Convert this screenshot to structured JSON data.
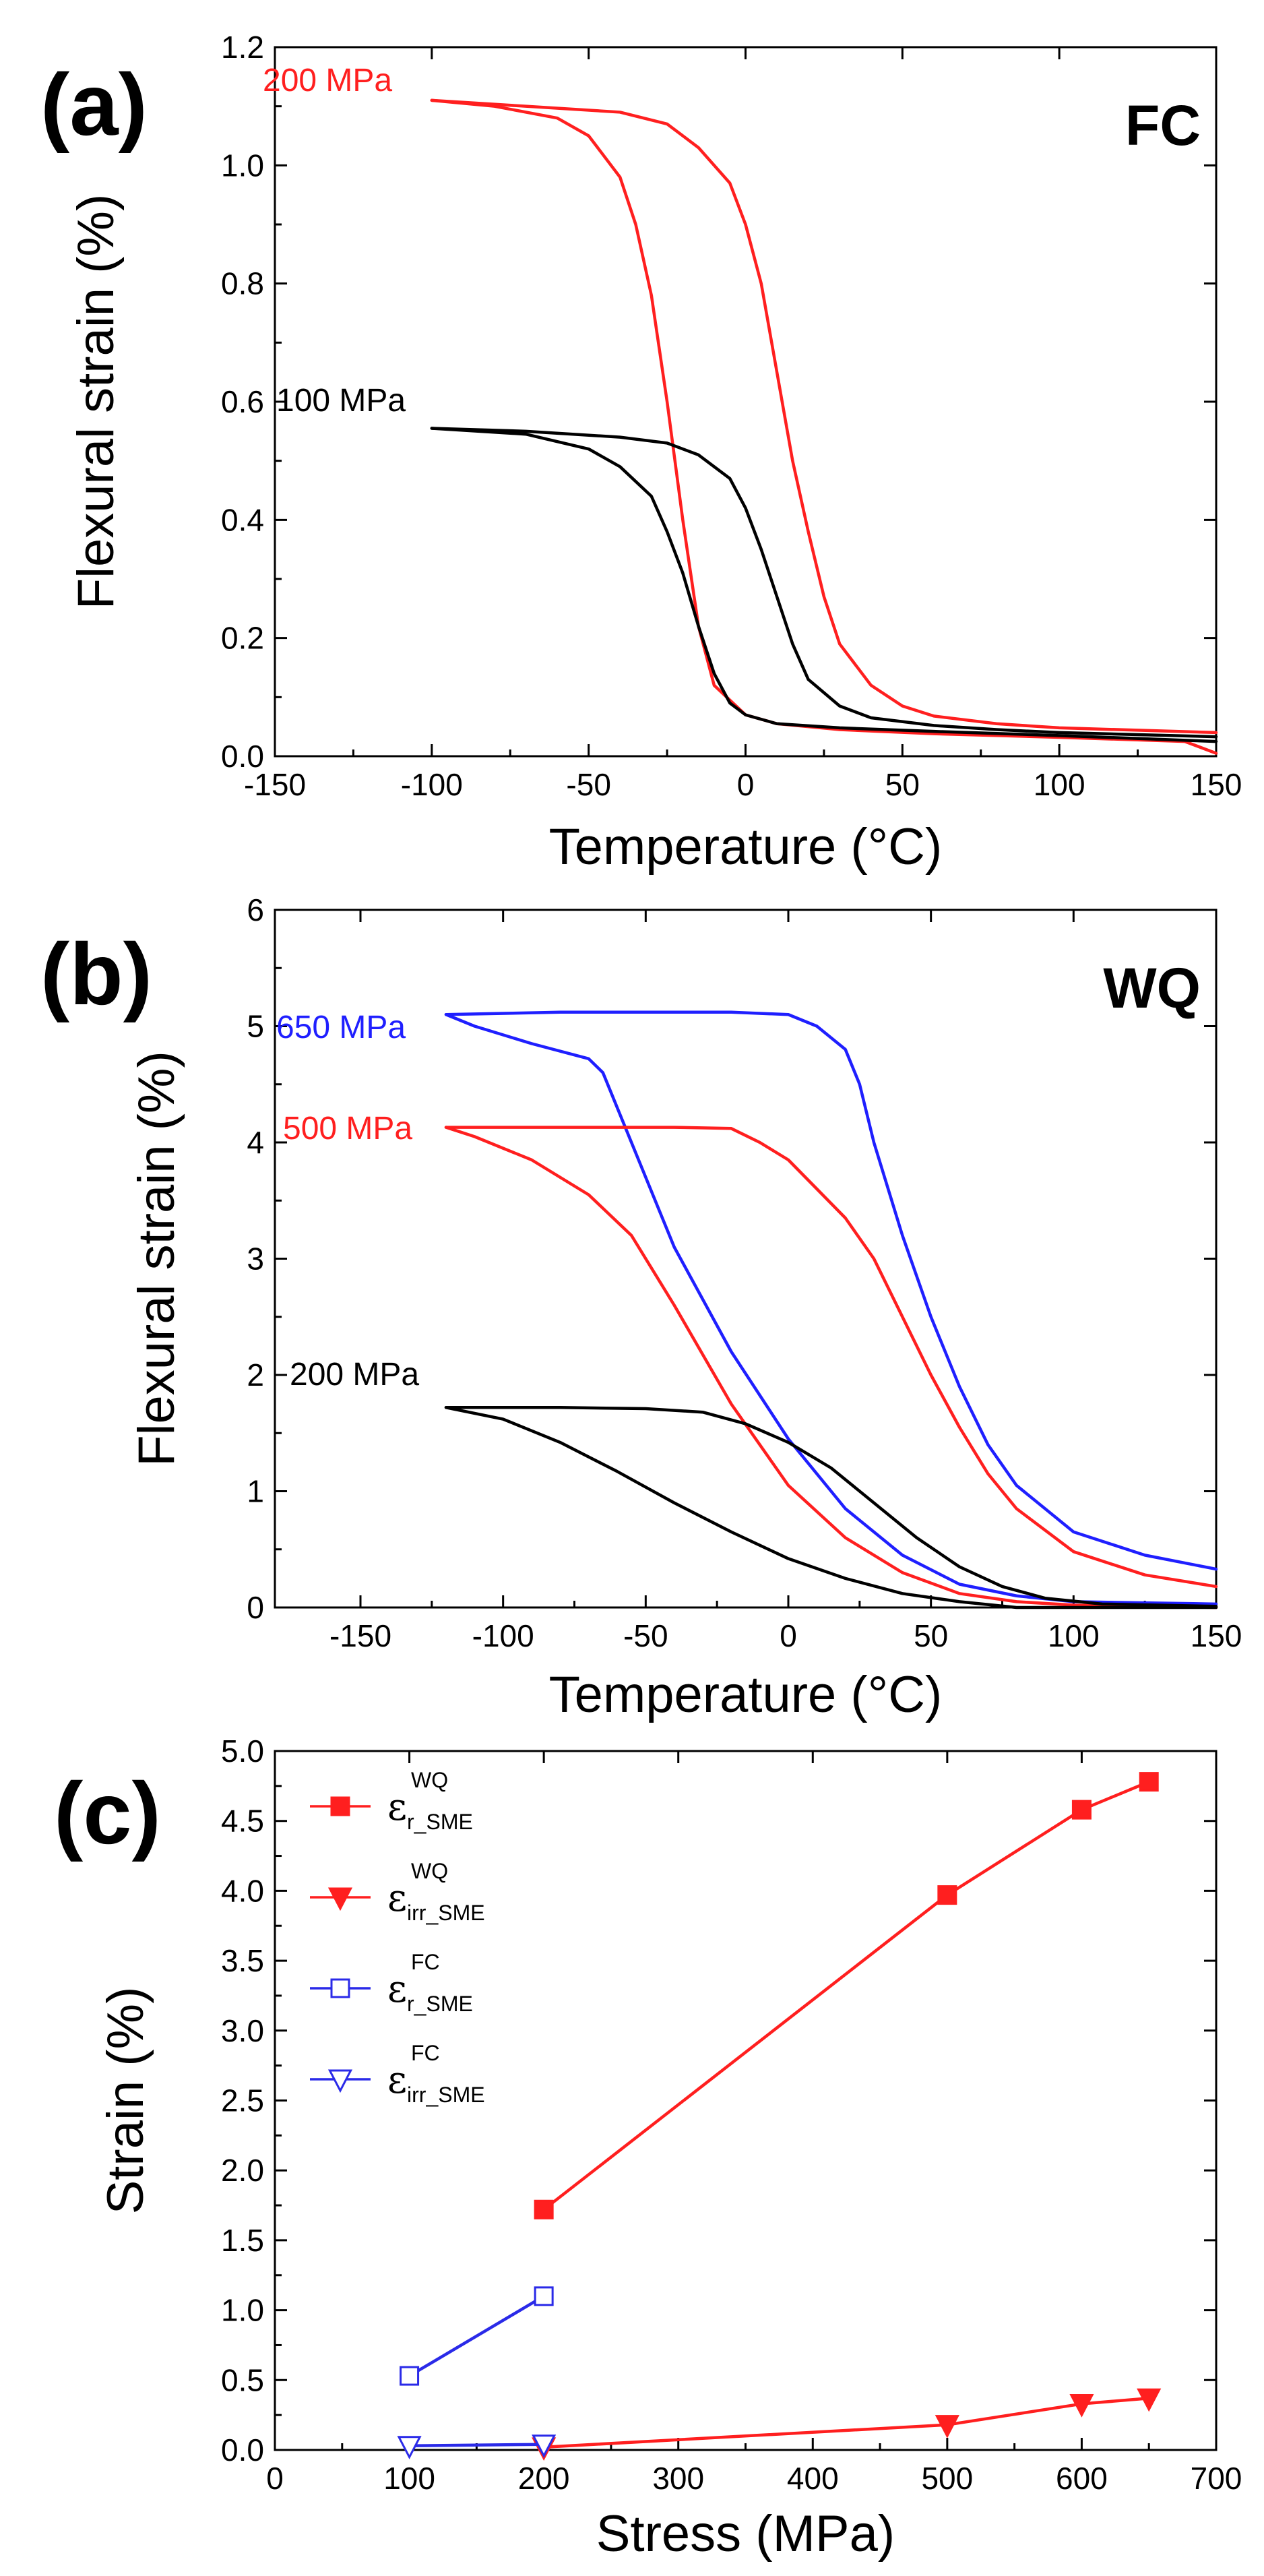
{
  "chart_data": [
    {
      "panel": "(a)",
      "type": "line",
      "corner_label": "FC",
      "xlabel": "Temperature (°C)",
      "ylabel": "Flexural strain (%)",
      "xlim": [
        -150,
        150
      ],
      "ylim": [
        0.0,
        1.2
      ],
      "xticks": [
        -150,
        -100,
        -50,
        0,
        50,
        100,
        150
      ],
      "yticks": [
        "0.0",
        "0.2",
        "0.4",
        "0.6",
        "0.8",
        "1.0",
        "1.2"
      ],
      "series": [
        {
          "name": "200 MPa",
          "color": "#ff1f1f",
          "cooling": [
            [
              150,
              0.005
            ],
            [
              140,
              0.025
            ],
            [
              100,
              0.032
            ],
            [
              60,
              0.038
            ],
            [
              30,
              0.045
            ],
            [
              10,
              0.055
            ],
            [
              0,
              0.07
            ],
            [
              -10,
              0.12
            ],
            [
              -15,
              0.22
            ],
            [
              -20,
              0.4
            ],
            [
              -25,
              0.6
            ],
            [
              -30,
              0.78
            ],
            [
              -35,
              0.9
            ],
            [
              -40,
              0.98
            ],
            [
              -50,
              1.05
            ],
            [
              -60,
              1.08
            ],
            [
              -80,
              1.1
            ],
            [
              -100,
              1.11
            ]
          ],
          "heating": [
            [
              -100,
              1.11
            ],
            [
              -70,
              1.1
            ],
            [
              -40,
              1.09
            ],
            [
              -25,
              1.07
            ],
            [
              -15,
              1.03
            ],
            [
              -5,
              0.97
            ],
            [
              0,
              0.9
            ],
            [
              5,
              0.8
            ],
            [
              10,
              0.65
            ],
            [
              15,
              0.5
            ],
            [
              20,
              0.38
            ],
            [
              25,
              0.27
            ],
            [
              30,
              0.19
            ],
            [
              40,
              0.12
            ],
            [
              50,
              0.085
            ],
            [
              60,
              0.068
            ],
            [
              80,
              0.055
            ],
            [
              100,
              0.048
            ],
            [
              150,
              0.04
            ]
          ]
        },
        {
          "name": "100 MPa",
          "color": "#000000",
          "cooling": [
            [
              150,
              0.025
            ],
            [
              100,
              0.035
            ],
            [
              60,
              0.042
            ],
            [
              30,
              0.048
            ],
            [
              10,
              0.055
            ],
            [
              0,
              0.07
            ],
            [
              -5,
              0.09
            ],
            [
              -10,
              0.14
            ],
            [
              -15,
              0.22
            ],
            [
              -20,
              0.31
            ],
            [
              -25,
              0.38
            ],
            [
              -30,
              0.44
            ],
            [
              -40,
              0.49
            ],
            [
              -50,
              0.52
            ],
            [
              -70,
              0.545
            ],
            [
              -100,
              0.555
            ]
          ],
          "heating": [
            [
              -100,
              0.555
            ],
            [
              -70,
              0.55
            ],
            [
              -40,
              0.54
            ],
            [
              -25,
              0.53
            ],
            [
              -15,
              0.51
            ],
            [
              -5,
              0.47
            ],
            [
              0,
              0.42
            ],
            [
              5,
              0.35
            ],
            [
              10,
              0.27
            ],
            [
              15,
              0.19
            ],
            [
              20,
              0.13
            ],
            [
              30,
              0.085
            ],
            [
              40,
              0.065
            ],
            [
              60,
              0.052
            ],
            [
              80,
              0.045
            ],
            [
              100,
              0.04
            ],
            [
              150,
              0.033
            ]
          ]
        }
      ]
    },
    {
      "panel": "(b)",
      "type": "line",
      "corner_label": "WQ",
      "xlabel": "Temperature (°C)",
      "ylabel": "Flexural strain (%)",
      "xlim": [
        -180,
        150
      ],
      "ylim": [
        0,
        6
      ],
      "xticks": [
        -150,
        -100,
        -50,
        0,
        50,
        100,
        150
      ],
      "yticks": [
        "0",
        "1",
        "2",
        "3",
        "4",
        "5",
        "6"
      ],
      "series": [
        {
          "name": "650 MPa",
          "color": "#1f1fff",
          "cooling": [
            [
              150,
              0.03
            ],
            [
              100,
              0.05
            ],
            [
              80,
              0.1
            ],
            [
              60,
              0.2
            ],
            [
              40,
              0.45
            ],
            [
              20,
              0.85
            ],
            [
              0,
              1.45
            ],
            [
              -20,
              2.2
            ],
            [
              -40,
              3.1
            ],
            [
              -55,
              4.0
            ],
            [
              -65,
              4.6
            ],
            [
              -70,
              4.72
            ],
            [
              -90,
              4.85
            ],
            [
              -110,
              5.0
            ],
            [
              -120,
              5.1
            ]
          ],
          "heating": [
            [
              -120,
              5.1
            ],
            [
              -80,
              5.12
            ],
            [
              -40,
              5.12
            ],
            [
              -20,
              5.12
            ],
            [
              0,
              5.1
            ],
            [
              10,
              5.0
            ],
            [
              15,
              4.9
            ],
            [
              20,
              4.8
            ],
            [
              25,
              4.5
            ],
            [
              30,
              4.0
            ],
            [
              40,
              3.2
            ],
            [
              50,
              2.5
            ],
            [
              60,
              1.9
            ],
            [
              70,
              1.4
            ],
            [
              80,
              1.05
            ],
            [
              100,
              0.65
            ],
            [
              125,
              0.45
            ],
            [
              150,
              0.33
            ]
          ]
        },
        {
          "name": "500 MPa",
          "color": "#ff1f1f",
          "cooling": [
            [
              150,
              0.0
            ],
            [
              120,
              0.01
            ],
            [
              100,
              0.02
            ],
            [
              80,
              0.05
            ],
            [
              60,
              0.12
            ],
            [
              40,
              0.3
            ],
            [
              20,
              0.6
            ],
            [
              0,
              1.05
            ],
            [
              -20,
              1.75
            ],
            [
              -40,
              2.6
            ],
            [
              -55,
              3.2
            ],
            [
              -70,
              3.55
            ],
            [
              -90,
              3.85
            ],
            [
              -110,
              4.05
            ],
            [
              -120,
              4.13
            ]
          ],
          "heating": [
            [
              -120,
              4.13
            ],
            [
              -80,
              4.13
            ],
            [
              -40,
              4.13
            ],
            [
              -20,
              4.12
            ],
            [
              -10,
              4.0
            ],
            [
              0,
              3.85
            ],
            [
              10,
              3.6
            ],
            [
              20,
              3.35
            ],
            [
              30,
              3.0
            ],
            [
              40,
              2.5
            ],
            [
              50,
              2.0
            ],
            [
              60,
              1.55
            ],
            [
              70,
              1.15
            ],
            [
              80,
              0.85
            ],
            [
              100,
              0.48
            ],
            [
              125,
              0.28
            ],
            [
              150,
              0.18
            ]
          ]
        },
        {
          "name": "200 MPa",
          "color": "#000000",
          "cooling": [
            [
              150,
              0.0
            ],
            [
              80,
              0.0
            ],
            [
              60,
              0.05
            ],
            [
              40,
              0.12
            ],
            [
              20,
              0.25
            ],
            [
              0,
              0.42
            ],
            [
              -20,
              0.65
            ],
            [
              -40,
              0.9
            ],
            [
              -60,
              1.17
            ],
            [
              -80,
              1.42
            ],
            [
              -100,
              1.62
            ],
            [
              -120,
              1.72
            ]
          ],
          "heating": [
            [
              -120,
              1.72
            ],
            [
              -80,
              1.72
            ],
            [
              -50,
              1.71
            ],
            [
              -30,
              1.68
            ],
            [
              -15,
              1.58
            ],
            [
              0,
              1.42
            ],
            [
              15,
              1.2
            ],
            [
              30,
              0.9
            ],
            [
              45,
              0.6
            ],
            [
              60,
              0.35
            ],
            [
              75,
              0.18
            ],
            [
              90,
              0.08
            ],
            [
              110,
              0.03
            ],
            [
              150,
              0.01
            ]
          ]
        }
      ]
    },
    {
      "panel": "(c)",
      "type": "line",
      "xlabel": "Stress (MPa)",
      "ylabel": "Strain (%)",
      "xlim": [
        0,
        700
      ],
      "ylim": [
        0.0,
        5.0
      ],
      "xticks": [
        0,
        100,
        200,
        300,
        400,
        500,
        600,
        700
      ],
      "yticks": [
        "0.0",
        "0.5",
        "1.0",
        "1.5",
        "2.0",
        "2.5",
        "3.0",
        "3.5",
        "4.0",
        "4.5",
        "5.0"
      ],
      "series": [
        {
          "name": "ε_r_SME^WQ",
          "symbol": "ε",
          "sub": "r_SME",
          "sup": "WQ",
          "color": "#ff1f1f",
          "marker": "square-filled",
          "x": [
            200,
            500,
            600,
            650
          ],
          "y": [
            1.72,
            3.97,
            4.58,
            4.78
          ]
        },
        {
          "name": "ε_irr_SME^WQ",
          "symbol": "ε",
          "sub": "irr_SME",
          "sup": "WQ",
          "color": "#ff1f1f",
          "marker": "triangle-down-filled",
          "x": [
            200,
            500,
            600,
            650
          ],
          "y": [
            0.02,
            0.18,
            0.33,
            0.37
          ]
        },
        {
          "name": "ε_r_SME^FC",
          "symbol": "ε",
          "sub": "r_SME",
          "sup": "FC",
          "color": "#2a2ae8",
          "marker": "square-open",
          "x": [
            100,
            200
          ],
          "y": [
            0.53,
            1.1
          ]
        },
        {
          "name": "ε_irr_SME^FC",
          "symbol": "ε",
          "sub": "irr_SME",
          "sup": "FC",
          "color": "#2a2ae8",
          "marker": "triangle-down-open",
          "x": [
            100,
            200
          ],
          "y": [
            0.03,
            0.04
          ]
        }
      ]
    }
  ]
}
